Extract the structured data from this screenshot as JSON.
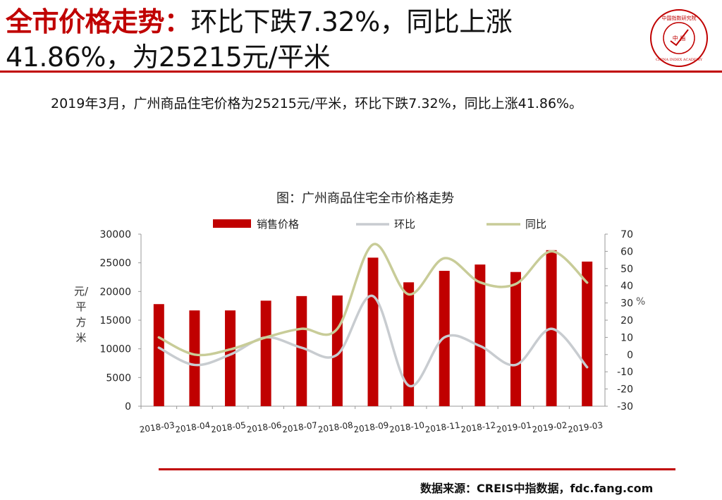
{
  "header": {
    "title_highlight": "全市价格走势：",
    "title_rest_line1": "环比下跌7.32%，同比上涨",
    "title_line2": "41.86%，为25215元/平米"
  },
  "logo": {
    "text": "中国指数研究院",
    "text_en": "CHINA INDEX ACADEMY",
    "center_text": "中 指"
  },
  "summary": "2019年3月，广州商品住宅价格为25215元/平米，环比下跌7.32%，同比上涨41.86%。",
  "source": "数据来源：CREIS中指数据，fdc.fang.com",
  "colors": {
    "accent": "#c00000",
    "bar": "#c00000",
    "mom_line": "#c8ccd0",
    "yoy_line": "#c8cc98"
  },
  "chart_data": {
    "type": "bar",
    "title": "图：广州商品住宅全市价格走势",
    "categories": [
      "2018-03",
      "2018-04",
      "2018-05",
      "2018-06",
      "2018-07",
      "2018-08",
      "2018-09",
      "2018-10",
      "2018-11",
      "2018-12",
      "2019-01",
      "2019-02",
      "2019-03"
    ],
    "series": [
      {
        "name": "销售价格",
        "type": "bar",
        "axis": "left",
        "values": [
          17800,
          16700,
          16700,
          18400,
          19200,
          19300,
          25900,
          21600,
          23600,
          24700,
          23400,
          27200,
          25215
        ]
      },
      {
        "name": "环比",
        "type": "line",
        "axis": "right",
        "values": [
          4,
          -6,
          0,
          10,
          4,
          0,
          34,
          -18,
          10,
          5,
          -6,
          15,
          -7.32
        ]
      },
      {
        "name": "同比",
        "type": "line",
        "axis": "right",
        "values": [
          10,
          0,
          3,
          10,
          15,
          15,
          64,
          35,
          56,
          42,
          41,
          60,
          41.86
        ]
      }
    ],
    "ylabel": "元/平方米",
    "ylabel_right": "%",
    "ylim": [
      0,
      30000
    ],
    "ylim_right": [
      -30,
      70
    ],
    "yticks": [
      "0",
      "5000",
      "10000",
      "15000",
      "20000",
      "25000",
      "30000"
    ],
    "yticks_right": [
      "-30",
      "-20",
      "-10",
      "0",
      "10",
      "20",
      "30",
      "40",
      "50",
      "60",
      "70"
    ],
    "legend_position": "top",
    "grid": false
  }
}
